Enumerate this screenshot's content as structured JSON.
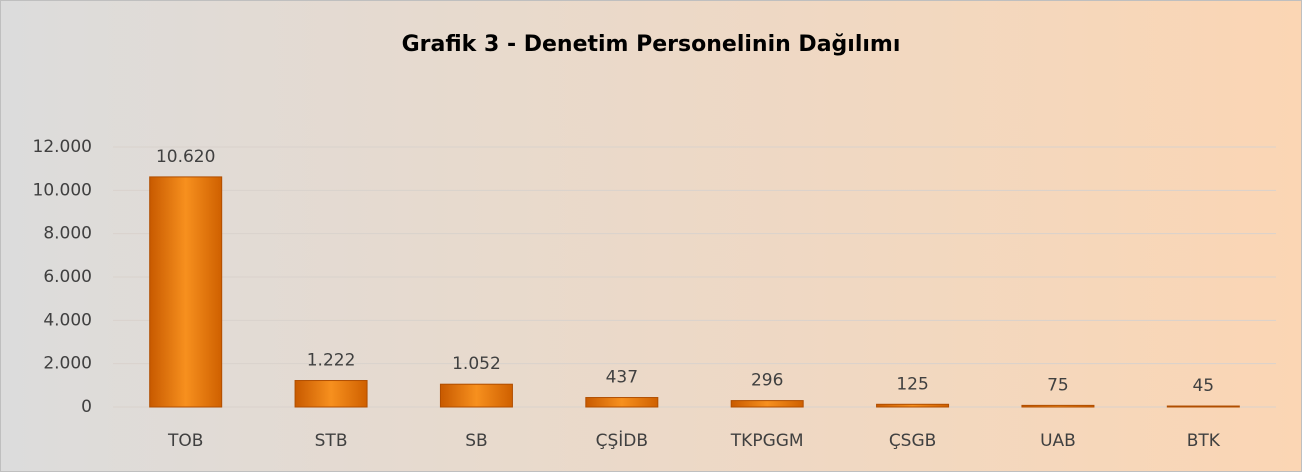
{
  "chart_data": {
    "type": "bar",
    "title": "Grafik 3 - Denetim Personelinin Dağılımı",
    "categories": [
      "TOB",
      "STB",
      "SB",
      "ÇŞİDB",
      "TKPGGM",
      "ÇSGB",
      "UAB",
      "BTK"
    ],
    "values": [
      10620,
      1222,
      1052,
      437,
      296,
      125,
      75,
      45
    ],
    "value_labels": [
      "10.620",
      "1.222",
      "1.052",
      "437",
      "296",
      "125",
      "75",
      "45"
    ],
    "color": "#f7901e",
    "ylim": [
      0,
      12000
    ],
    "yticks": [
      0,
      {
        "value": 2000,
        "label": "2.000"
      },
      {
        "value": 4000,
        "label": "4.000"
      },
      {
        "value": 6000,
        "label": "6.000"
      },
      {
        "value": 8000,
        "label": "8.000"
      },
      {
        "value": 10000,
        "label": "10.000"
      },
      {
        "value": 12000,
        "label": "12.000"
      }
    ],
    "grid": true
  }
}
